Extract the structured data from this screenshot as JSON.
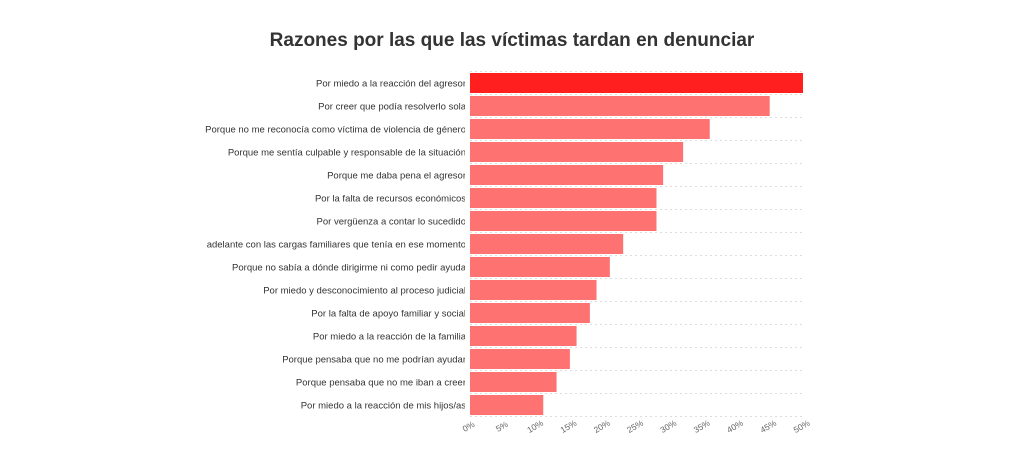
{
  "chart_data": {
    "type": "bar",
    "orientation": "horizontal",
    "title": "Razones por las que las víctimas tardan en denunciar",
    "xlabel": "",
    "ylabel": "",
    "categories": [
      "Por miedo a la reacción del agresor",
      "Por creer que podía resolverlo sola",
      "Porque no me reconocía como víctima de violencia de género",
      "Porque me sentía culpable y responsable de la situación",
      "Porque me daba pena el agresor",
      "Por la falta de recursos económicos",
      "Por vergüenza a contar lo sucedido",
      "Por tener que salir adelante con las cargas familiares que tenía en ese momento",
      "Porque no sabía a dónde dirigirme ni como pedir ayuda",
      "Por miedo y desconocimiento al proceso judicial",
      "Por la falta de apoyo familiar y social",
      "Por miedo a la reacción de la familia",
      "Porque pensaba que no me podrían ayudar",
      "Porque pensaba que no me iban a creer",
      "Por miedo a la reacción de mis hijos/as"
    ],
    "values": [
      50,
      45,
      36,
      32,
      29,
      28,
      28,
      23,
      21,
      19,
      18,
      16,
      15,
      13,
      11
    ],
    "xlim": [
      0,
      50
    ],
    "ticks": [
      0,
      5,
      10,
      15,
      20,
      25,
      30,
      35,
      40,
      45,
      50
    ],
    "tick_labels": [
      "0%",
      "5%",
      "10%",
      "15%",
      "20%",
      "25%",
      "30%",
      "35%",
      "40%",
      "45%",
      "50%"
    ],
    "grid": true,
    "colors": {
      "highlight": "#ff1f1f",
      "bar": "#ff7272"
    }
  }
}
